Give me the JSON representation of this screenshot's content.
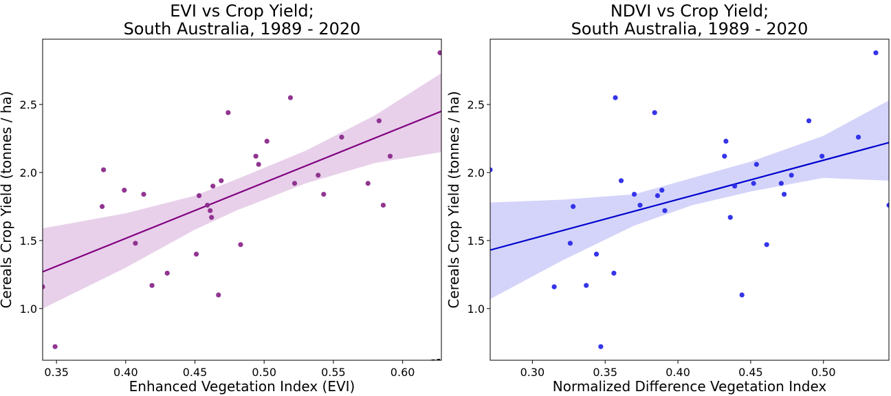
{
  "chart_data": [
    {
      "type": "scatter",
      "title": [
        "EVI vs Crop Yield;",
        "South Australia, 1989 - 2020"
      ],
      "xlabel": "Enhanced Vegetation Index (EVI)",
      "ylabel": "Cereals Crop Yield (tonnes / ha)",
      "xlim": [
        0.34,
        0.628
      ],
      "ylim": [
        0.62,
        2.98
      ],
      "xticks": [
        0.35,
        0.4,
        0.45,
        0.5,
        0.55,
        0.6
      ],
      "xtick_labels": [
        "0.35",
        "0.40",
        "0.45",
        "0.50",
        "0.55",
        "0.60"
      ],
      "yticks": [
        1.0,
        1.5,
        2.0,
        2.5
      ],
      "ytick_labels": [
        "1.0",
        "1.5",
        "2.0",
        "2.5"
      ],
      "point_color": "#8b2a8b",
      "line_color": "#800080",
      "band_color": "#e8d0ea",
      "points": [
        [
          0.34,
          1.16
        ],
        [
          0.349,
          0.72
        ],
        [
          0.383,
          1.75
        ],
        [
          0.384,
          2.02
        ],
        [
          0.399,
          1.87
        ],
        [
          0.407,
          1.48
        ],
        [
          0.413,
          1.84
        ],
        [
          0.419,
          1.17
        ],
        [
          0.43,
          1.26
        ],
        [
          0.451,
          1.4
        ],
        [
          0.453,
          1.83
        ],
        [
          0.459,
          1.76
        ],
        [
          0.461,
          1.72
        ],
        [
          0.462,
          1.67
        ],
        [
          0.463,
          1.9
        ],
        [
          0.467,
          1.1
        ],
        [
          0.469,
          1.94
        ],
        [
          0.474,
          2.44
        ],
        [
          0.483,
          1.47
        ],
        [
          0.494,
          2.12
        ],
        [
          0.496,
          2.06
        ],
        [
          0.502,
          2.23
        ],
        [
          0.519,
          2.55
        ],
        [
          0.522,
          1.92
        ],
        [
          0.539,
          1.98
        ],
        [
          0.543,
          1.84
        ],
        [
          0.556,
          2.26
        ],
        [
          0.575,
          1.92
        ],
        [
          0.583,
          2.38
        ],
        [
          0.586,
          1.76
        ],
        [
          0.591,
          2.12
        ],
        [
          0.627,
          2.88
        ]
      ],
      "fit": {
        "x": [
          0.34,
          0.628
        ],
        "y": [
          1.27,
          2.45
        ]
      },
      "ci_band": {
        "x": [
          0.34,
          0.4,
          0.45,
          0.48,
          0.53,
          0.58,
          0.628
        ],
        "upper": [
          1.59,
          1.7,
          1.83,
          1.95,
          2.16,
          2.42,
          2.73
        ],
        "lower": [
          1.0,
          1.3,
          1.58,
          1.72,
          1.92,
          2.07,
          2.15
        ]
      },
      "identity_line": true
    },
    {
      "type": "scatter",
      "title": [
        "NDVI vs Crop Yield;",
        "South Australia, 1989 - 2020"
      ],
      "xlabel": "Normalized Difference Vegetation Index",
      "ylabel": "Cereals Crop Yield (tonnes / ha)",
      "xlim": [
        0.271,
        0.545
      ],
      "ylim": [
        0.62,
        2.98
      ],
      "xticks": [
        0.3,
        0.35,
        0.4,
        0.45,
        0.5
      ],
      "xtick_labels": [
        "0.30",
        "0.35",
        "0.40",
        "0.45",
        "0.50"
      ],
      "yticks": [
        1.0,
        1.5,
        2.0,
        2.5
      ],
      "ytick_labels": [
        "1.0",
        "1.5",
        "2.0",
        "2.5"
      ],
      "point_color": "#2a2ae8",
      "line_color": "#0000cd",
      "band_color": "#d4d4fa",
      "points": [
        [
          0.271,
          2.02
        ],
        [
          0.315,
          1.16
        ],
        [
          0.326,
          1.48
        ],
        [
          0.328,
          1.75
        ],
        [
          0.337,
          1.17
        ],
        [
          0.344,
          1.4
        ],
        [
          0.347,
          0.72
        ],
        [
          0.356,
          1.26
        ],
        [
          0.357,
          2.55
        ],
        [
          0.361,
          1.94
        ],
        [
          0.37,
          1.84
        ],
        [
          0.374,
          1.76
        ],
        [
          0.384,
          2.44
        ],
        [
          0.386,
          1.83
        ],
        [
          0.389,
          1.87
        ],
        [
          0.391,
          1.72
        ],
        [
          0.432,
          2.12
        ],
        [
          0.433,
          2.23
        ],
        [
          0.436,
          1.67
        ],
        [
          0.439,
          1.9
        ],
        [
          0.444,
          1.1
        ],
        [
          0.452,
          1.92
        ],
        [
          0.454,
          2.06
        ],
        [
          0.461,
          1.47
        ],
        [
          0.471,
          1.92
        ],
        [
          0.473,
          1.84
        ],
        [
          0.478,
          1.98
        ],
        [
          0.49,
          2.38
        ],
        [
          0.499,
          2.12
        ],
        [
          0.524,
          2.26
        ],
        [
          0.536,
          2.88
        ],
        [
          0.545,
          1.76
        ]
      ],
      "fit": {
        "x": [
          0.271,
          0.545
        ],
        "y": [
          1.43,
          2.22
        ]
      },
      "ci_band": {
        "x": [
          0.271,
          0.32,
          0.37,
          0.41,
          0.45,
          0.5,
          0.545
        ],
        "upper": [
          1.78,
          1.8,
          1.84,
          1.96,
          2.08,
          2.27,
          2.53
        ],
        "lower": [
          1.07,
          1.35,
          1.61,
          1.76,
          1.86,
          1.96,
          1.94
        ]
      },
      "identity_line": true
    }
  ]
}
